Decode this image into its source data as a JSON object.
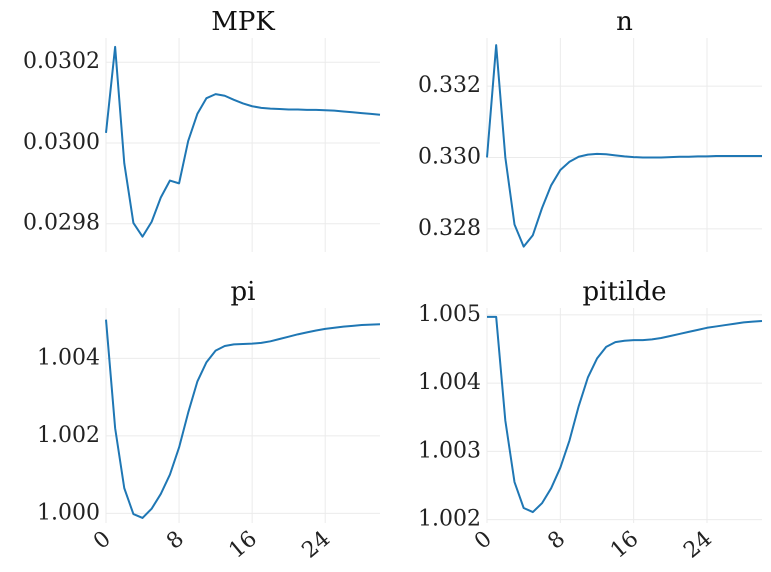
{
  "chart_data": [
    {
      "type": "line",
      "title": "MPK",
      "x": [
        0,
        1,
        2,
        3,
        4,
        5,
        6,
        7,
        8,
        9,
        10,
        11,
        12,
        13,
        14,
        15,
        16,
        17,
        18,
        19,
        20,
        21,
        22,
        23,
        24,
        25,
        26,
        27,
        28,
        29,
        30
      ],
      "values": [
        0.030025,
        0.030238,
        0.02995,
        0.029802,
        0.029768,
        0.029805,
        0.029865,
        0.029907,
        0.0299,
        0.030005,
        0.030072,
        0.030111,
        0.030121,
        0.030117,
        0.030107,
        0.030098,
        0.030091,
        0.030087,
        0.030085,
        0.030084,
        0.030083,
        0.030083,
        0.030082,
        0.030082,
        0.030081,
        0.03008,
        0.030078,
        0.030076,
        0.030074,
        0.030072,
        0.03007
      ],
      "yticks": [
        0.0298,
        0.03,
        0.0302
      ],
      "ytick_labels": [
        "0.0298",
        "0.0300",
        "0.0302"
      ],
      "xticks": [
        0,
        8,
        16,
        24
      ],
      "xtick_labels": [
        "0",
        "8",
        "16",
        "24"
      ],
      "ylim": [
        0.02973,
        0.03026
      ],
      "xlim": [
        0,
        30
      ],
      "grid": true
    },
    {
      "type": "line",
      "title": "n",
      "x": [
        0,
        1,
        2,
        3,
        4,
        5,
        6,
        7,
        8,
        9,
        10,
        11,
        12,
        13,
        14,
        15,
        16,
        17,
        18,
        19,
        20,
        21,
        22,
        23,
        24,
        25,
        26,
        27,
        28,
        29,
        30
      ],
      "values": [
        0.33,
        0.33315,
        0.33,
        0.32812,
        0.3275,
        0.32782,
        0.32858,
        0.32922,
        0.32965,
        0.32988,
        0.33002,
        0.33008,
        0.3301,
        0.33009,
        0.33006,
        0.33003,
        0.33001,
        0.33,
        0.33,
        0.33,
        0.33001,
        0.33002,
        0.33002,
        0.33003,
        0.33003,
        0.33004,
        0.33004,
        0.33004,
        0.33004,
        0.33004,
        0.33004
      ],
      "yticks": [
        0.328,
        0.33,
        0.332
      ],
      "ytick_labels": [
        "0.328",
        "0.330",
        "0.332"
      ],
      "xticks": [
        0,
        8,
        16,
        24
      ],
      "xtick_labels": [
        "0",
        "8",
        "16",
        "24"
      ],
      "ylim": [
        0.32735,
        0.33335
      ],
      "xlim": [
        0,
        30
      ],
      "grid": true
    },
    {
      "type": "line",
      "title": "pi",
      "x": [
        0,
        1,
        2,
        3,
        4,
        5,
        6,
        7,
        8,
        9,
        10,
        11,
        12,
        13,
        14,
        15,
        16,
        17,
        18,
        19,
        20,
        21,
        22,
        23,
        24,
        25,
        26,
        27,
        28,
        29,
        30
      ],
      "values": [
        1.005,
        1.0022,
        1.00065,
        0.99998,
        0.99988,
        1.00012,
        1.0005,
        1.001,
        1.0017,
        1.0026,
        1.0034,
        1.0039,
        1.0042,
        1.00432,
        1.00436,
        1.00437,
        1.00438,
        1.0044,
        1.00444,
        1.0045,
        1.00456,
        1.00462,
        1.00467,
        1.00472,
        1.00476,
        1.00479,
        1.00482,
        1.00484,
        1.00486,
        1.00487,
        1.00488
      ],
      "yticks": [
        1.0,
        1.002,
        1.004
      ],
      "ytick_labels": [
        "1.000",
        "1.002",
        "1.004"
      ],
      "xticks": [
        0,
        8,
        16,
        24
      ],
      "xtick_labels": [
        "0",
        "8",
        "16",
        "24"
      ],
      "ylim": [
        0.99975,
        1.0053
      ],
      "xlim": [
        0,
        30
      ],
      "grid": true
    },
    {
      "type": "line",
      "title": "pitilde",
      "x": [
        0,
        1,
        2,
        3,
        4,
        5,
        6,
        7,
        8,
        9,
        10,
        11,
        12,
        13,
        14,
        15,
        16,
        17,
        18,
        19,
        20,
        21,
        22,
        23,
        24,
        25,
        26,
        27,
        28,
        29,
        30
      ],
      "values": [
        1.00497,
        1.00497,
        1.00345,
        1.00255,
        1.00217,
        1.00211,
        1.00224,
        1.00246,
        1.00276,
        1.00316,
        1.00366,
        1.00408,
        1.00436,
        1.00453,
        1.0046,
        1.00462,
        1.00463,
        1.00463,
        1.00464,
        1.00466,
        1.00469,
        1.00472,
        1.00475,
        1.00478,
        1.00481,
        1.00483,
        1.00485,
        1.00487,
        1.00489,
        1.0049,
        1.00491
      ],
      "yticks": [
        1.002,
        1.003,
        1.004,
        1.005
      ],
      "ytick_labels": [
        "1.002",
        "1.003",
        "1.004",
        "1.005"
      ],
      "xticks": [
        0,
        8,
        16,
        24
      ],
      "xtick_labels": [
        "0",
        "8",
        "16",
        "24"
      ],
      "ylim": [
        1.00195,
        1.0051
      ],
      "xlim": [
        0,
        30
      ],
      "grid": true
    }
  ],
  "style": {
    "line_color": "#1f77b4",
    "grid_color": "#ebebeb",
    "background": "#ffffff"
  }
}
